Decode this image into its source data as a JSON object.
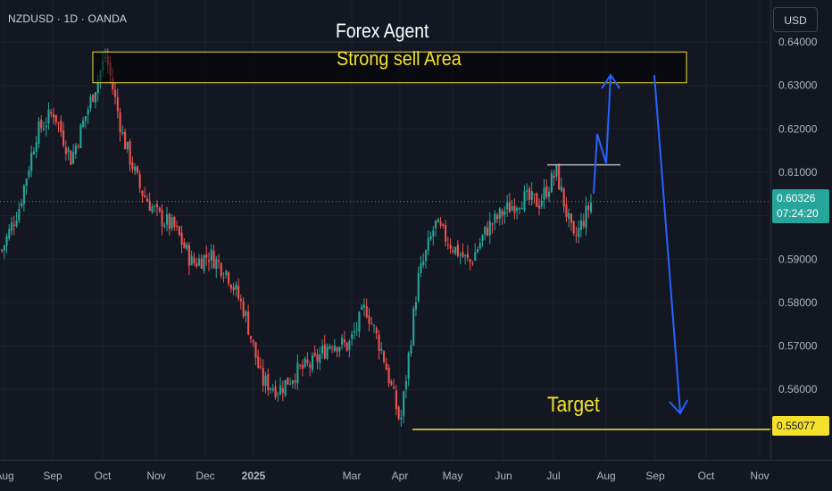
{
  "header": {
    "symbol": "NZDUSD · 1D · OANDA",
    "currency_button": "USD"
  },
  "annotations": {
    "title": "Forex Agent",
    "sell_area_label": "Strong sell Area",
    "target_label": "Target"
  },
  "price_tags": {
    "current_price": "0.60326",
    "countdown": "07:24:20",
    "target_price": "0.55077"
  },
  "colors": {
    "background": "#131722",
    "up_candle": "#26a69a",
    "down_candle": "#ef5350",
    "annotation_yellow": "#f5e12b",
    "arrow_blue": "#2962ff",
    "axis_text": "#b2b5be"
  },
  "chart_data": {
    "type": "candlestick",
    "instrument": "NZDUSD",
    "timeframe": "1D",
    "source": "OANDA",
    "y_ticks": [
      "0.64000",
      "0.63000",
      "0.62000",
      "0.61000",
      "0.60000",
      "0.59000",
      "0.58000",
      "0.57000",
      "0.56000"
    ],
    "y_range": [
      0.5475,
      0.6425
    ],
    "x_ticks": [
      "Aug",
      "Sep",
      "Oct",
      "Nov",
      "Dec",
      "2025",
      "Mar",
      "Apr",
      "May",
      "Jun",
      "Jul",
      "Aug",
      "Sep",
      "Oct",
      "Nov"
    ],
    "price_path": [
      {
        "date": "Aug",
        "price": 0.592
      },
      {
        "date": "mid-Aug",
        "price": 0.602
      },
      {
        "date": "late-Aug",
        "price": 0.619
      },
      {
        "date": "Sep",
        "price": 0.624
      },
      {
        "date": "mid-Sep",
        "price": 0.613
      },
      {
        "date": "late-Sep",
        "price": 0.625
      },
      {
        "date": "Oct",
        "price": 0.637
      },
      {
        "date": "early-Oct",
        "price": 0.618
      },
      {
        "date": "mid-Oct",
        "price": 0.606
      },
      {
        "date": "late-Oct",
        "price": 0.6
      },
      {
        "date": "Nov",
        "price": 0.597
      },
      {
        "date": "mid-Nov",
        "price": 0.589
      },
      {
        "date": "late-Nov",
        "price": 0.591
      },
      {
        "date": "Dec",
        "price": 0.587
      },
      {
        "date": "mid-Dec",
        "price": 0.578
      },
      {
        "date": "late-Dec",
        "price": 0.562
      },
      {
        "date": "2025",
        "price": 0.56
      },
      {
        "date": "mid-Jan",
        "price": 0.564
      },
      {
        "date": "Feb",
        "price": 0.566
      },
      {
        "date": "mid-Feb",
        "price": 0.571
      },
      {
        "date": "Mar",
        "price": 0.57
      },
      {
        "date": "mid-Mar",
        "price": 0.579
      },
      {
        "date": "late-Mar",
        "price": 0.568
      },
      {
        "date": "Apr",
        "price": 0.552
      },
      {
        "date": "mid-Apr",
        "price": 0.585
      },
      {
        "date": "late-Apr",
        "price": 0.598
      },
      {
        "date": "May",
        "price": 0.593
      },
      {
        "date": "mid-May",
        "price": 0.589
      },
      {
        "date": "late-May",
        "price": 0.597
      },
      {
        "date": "Jun",
        "price": 0.601
      },
      {
        "date": "mid-Jun",
        "price": 0.604
      },
      {
        "date": "late-Jun",
        "price": 0.603
      },
      {
        "date": "Jul",
        "price": 0.61
      },
      {
        "date": "mid-Jul",
        "price": 0.594
      },
      {
        "date": "late-Jul",
        "price": 0.603
      }
    ],
    "zones": [
      {
        "label": "Strong sell Area",
        "from": 0.6306,
        "to": 0.6377
      }
    ],
    "levels": [
      {
        "label": "Target",
        "price": 0.55077
      },
      {
        "price": 0.6117
      }
    ],
    "current_price": 0.60326
  }
}
